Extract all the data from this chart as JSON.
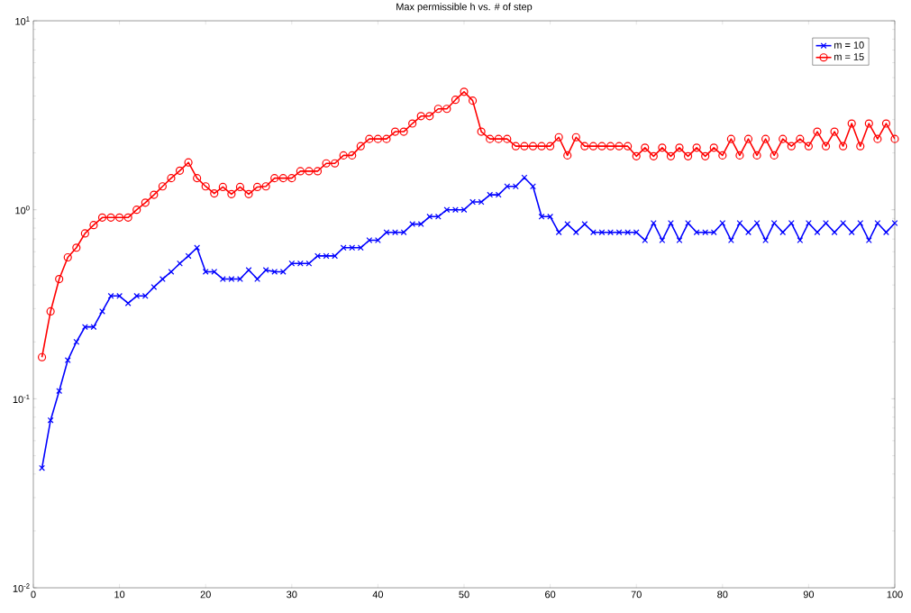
{
  "chart_data": {
    "type": "line",
    "title": "Max permissible h vs. # of step",
    "x": [
      1,
      2,
      3,
      4,
      5,
      6,
      7,
      8,
      9,
      10,
      11,
      12,
      13,
      14,
      15,
      16,
      17,
      18,
      19,
      20,
      21,
      22,
      23,
      24,
      25,
      26,
      27,
      28,
      29,
      30,
      31,
      32,
      33,
      34,
      35,
      36,
      37,
      38,
      39,
      40,
      41,
      42,
      43,
      44,
      45,
      46,
      47,
      48,
      49,
      50,
      51,
      52,
      53,
      54,
      55,
      56,
      57,
      58,
      59,
      60,
      61,
      62,
      63,
      64,
      65,
      66,
      67,
      68,
      69,
      70,
      71,
      72,
      73,
      74,
      75,
      76,
      77,
      78,
      79,
      80,
      81,
      82,
      83,
      84,
      85,
      86,
      87,
      88,
      89,
      90,
      91,
      92,
      93,
      94,
      95,
      96,
      97,
      98,
      99,
      100
    ],
    "series": [
      {
        "name": "m = 10",
        "color": "#0000ff",
        "marker": "cross",
        "values": [
          0.043,
          0.077,
          0.11,
          0.16,
          0.2,
          0.24,
          0.24,
          0.29,
          0.35,
          0.35,
          0.32,
          0.35,
          0.35,
          0.39,
          0.43,
          0.47,
          0.52,
          0.57,
          0.63,
          0.47,
          0.47,
          0.43,
          0.43,
          0.43,
          0.48,
          0.43,
          0.48,
          0.47,
          0.47,
          0.52,
          0.52,
          0.52,
          0.57,
          0.57,
          0.57,
          0.63,
          0.63,
          0.63,
          0.69,
          0.69,
          0.76,
          0.76,
          0.76,
          0.84,
          0.84,
          0.92,
          0.92,
          1.0,
          1.0,
          1.0,
          1.1,
          1.1,
          1.2,
          1.2,
          1.33,
          1.33,
          1.48,
          1.33,
          0.92,
          0.92,
          0.76,
          0.84,
          0.76,
          0.84,
          0.76,
          0.76,
          0.76,
          0.76,
          0.76,
          0.76,
          0.69,
          0.85,
          0.69,
          0.85,
          0.69,
          0.85,
          0.76,
          0.76,
          0.76,
          0.85,
          0.69,
          0.85,
          0.76,
          0.85,
          0.69,
          0.85,
          0.76,
          0.85,
          0.69,
          0.85,
          0.76,
          0.85,
          0.76,
          0.85,
          0.76,
          0.85,
          0.69,
          0.85,
          0.76,
          0.85
        ]
      },
      {
        "name": "m = 15",
        "color": "#ff0000",
        "marker": "circle",
        "values": [
          0.166,
          0.29,
          0.43,
          0.56,
          0.63,
          0.75,
          0.83,
          0.91,
          0.91,
          0.91,
          0.91,
          1.0,
          1.09,
          1.2,
          1.33,
          1.47,
          1.61,
          1.78,
          1.47,
          1.33,
          1.22,
          1.32,
          1.21,
          1.32,
          1.21,
          1.32,
          1.33,
          1.47,
          1.47,
          1.47,
          1.6,
          1.6,
          1.6,
          1.76,
          1.76,
          1.94,
          1.94,
          2.17,
          2.37,
          2.37,
          2.37,
          2.59,
          2.59,
          2.86,
          3.13,
          3.13,
          3.42,
          3.42,
          3.82,
          4.21,
          3.78,
          2.59,
          2.37,
          2.37,
          2.37,
          2.17,
          2.17,
          2.17,
          2.17,
          2.17,
          2.42,
          1.94,
          2.42,
          2.17,
          2.17,
          2.17,
          2.17,
          2.17,
          2.17,
          1.92,
          2.13,
          1.92,
          2.13,
          1.92,
          2.13,
          1.92,
          2.13,
          1.92,
          2.13,
          1.94,
          2.37,
          1.94,
          2.37,
          1.94,
          2.37,
          1.94,
          2.37,
          2.17,
          2.37,
          2.17,
          2.59,
          2.17,
          2.59,
          2.17,
          2.86,
          2.17,
          2.86,
          2.37,
          2.86,
          2.37
        ]
      }
    ],
    "xlim": [
      0,
      100
    ],
    "xticks": [
      0,
      10,
      20,
      30,
      40,
      50,
      60,
      70,
      80,
      90,
      100
    ],
    "ylim": [
      0.01,
      10
    ],
    "log": "y",
    "yticks": [
      {
        "value": 0.01,
        "label": "10$^{-2}$"
      },
      {
        "value": 0.1,
        "label": "10$^{-1}$"
      },
      {
        "value": 1,
        "label": "10$^{0}$"
      },
      {
        "value": 10,
        "label": "10$^{1}$"
      }
    ],
    "legend": "top right"
  }
}
